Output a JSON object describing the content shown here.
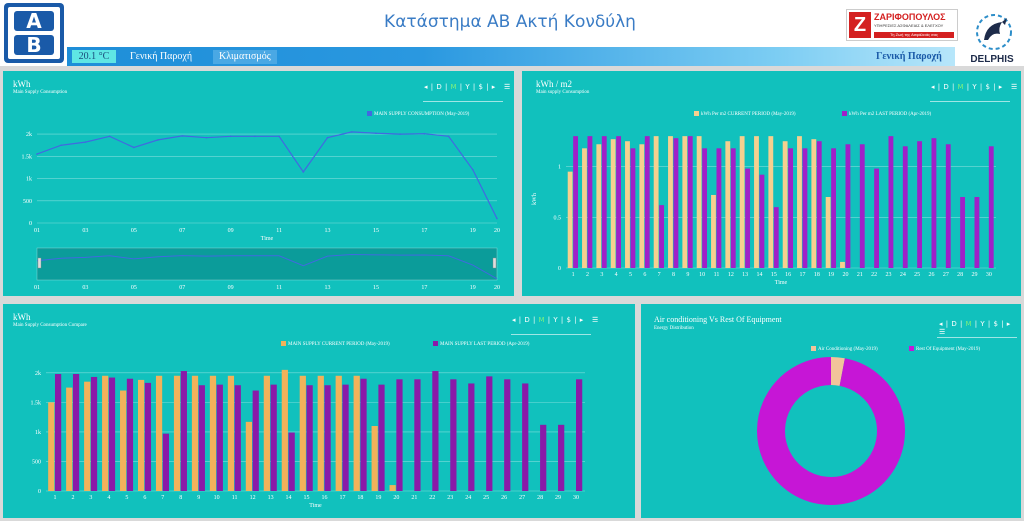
{
  "header": {
    "title": "Κατάστημα AB Ακτή Κονδύλη",
    "logo_text": "AB",
    "temperature": "20.1 °C",
    "nav_items": [
      "Γενική Παροχή",
      "Κλιματισμός"
    ],
    "nav_right": "Γενική Παροχή",
    "partner_logo": {
      "name": "ΖΑΡΙΦΟΠΟΥΛΟΣ",
      "subtitle": "ΥΠΗΡΕΣΙΕΣ ΑΣΦΑΛΕΙΑΣ & ΕΛΕΓΧΟΥ",
      "tagline": "Τη Ζωή της Ασφάλειάς σας"
    },
    "delphis_logo": "DELPHIS"
  },
  "colors": {
    "panel": "#11c1bd",
    "line": "#4169e1",
    "current": "#f2b25a",
    "last": "#8a1aa8",
    "ac": "#f2c49a",
    "rest": "#c616d6",
    "current_light": "#f6d08f",
    "last_bright": "#a020c8"
  },
  "controls": [
    "◂",
    "D",
    "M",
    "Y",
    "$",
    "▸",
    "☰"
  ],
  "panels": {
    "p1": {
      "title": "kWh",
      "subtitle": "Main Supply Consumption"
    },
    "p2": {
      "title": "kWh / m2",
      "subtitle": "Main supply Consumption"
    },
    "p3": {
      "title": "kWh",
      "subtitle": "Main Supply Consumption Compare"
    },
    "p4": {
      "title": "Air conditioning Vs Rest Of Equipment",
      "subtitle": "Energy Distribution"
    }
  },
  "chart_data": [
    {
      "type": "line",
      "series": [
        {
          "name": "MAIN SUPPLY CONSUMPTION (May-2019)",
          "values": [
            1550,
            1750,
            1820,
            1950,
            1700,
            1870,
            1960,
            1920,
            1950,
            1950,
            1950,
            1150,
            1920,
            2050,
            2020,
            2000,
            2010,
            1950,
            1200,
            100
          ]
        }
      ],
      "x": [
        "01",
        "02",
        "03",
        "04",
        "05",
        "06",
        "07",
        "08",
        "09",
        "10",
        "11",
        "12",
        "13",
        "14",
        "15",
        "16",
        "17",
        "18",
        "19",
        "20"
      ],
      "x_tick_labels": [
        "01",
        "03",
        "05",
        "07",
        "09",
        "11",
        "13",
        "15",
        "17",
        "19",
        "20"
      ],
      "y_ticks": [
        "0",
        "500",
        "1k",
        "1.5k",
        "2k"
      ],
      "ylim": [
        0,
        2250
      ],
      "xlabel": "Time",
      "navigator_ticks": [
        "01",
        "03",
        "05",
        "07",
        "09",
        "11",
        "13",
        "15",
        "17",
        "19",
        "20"
      ]
    },
    {
      "type": "bar",
      "categories": [
        "1",
        "2",
        "3",
        "4",
        "5",
        "6",
        "7",
        "8",
        "9",
        "10",
        "11",
        "12",
        "13",
        "14",
        "15",
        "16",
        "17",
        "18",
        "19",
        "20",
        "21",
        "22",
        "23",
        "24",
        "25",
        "26",
        "27",
        "28",
        "29",
        "30"
      ],
      "series": [
        {
          "name": "kWh Per m2 CURRENT PERIOD (May-2019)",
          "values": [
            0.95,
            1.18,
            1.22,
            1.27,
            1.25,
            1.22,
            1.3,
            1.3,
            1.3,
            1.3,
            0.72,
            1.25,
            1.3,
            1.3,
            1.3,
            1.25,
            1.3,
            1.27,
            0.7,
            0.06,
            null,
            null,
            null,
            null,
            null,
            null,
            null,
            null,
            null,
            null
          ]
        },
        {
          "name": "kWh Per m2 LAST PERIOD (Apr-2019)",
          "values": [
            1.3,
            1.3,
            1.3,
            1.3,
            1.18,
            1.3,
            0.62,
            1.28,
            1.3,
            1.18,
            1.18,
            1.18,
            0.98,
            0.92,
            0.6,
            1.18,
            1.18,
            1.25,
            1.18,
            1.22,
            1.22,
            0.98,
            1.3,
            1.2,
            1.25,
            1.28,
            1.22,
            0.7,
            0.7,
            1.2
          ]
        }
      ],
      "y_ticks": [
        "0",
        "0.5",
        "1"
      ],
      "ylim": [
        0,
        1.4
      ],
      "xlabel": "Time",
      "ylabel": "kWh"
    },
    {
      "type": "bar",
      "categories": [
        "1",
        "2",
        "3",
        "4",
        "5",
        "6",
        "7",
        "8",
        "9",
        "10",
        "11",
        "12",
        "13",
        "14",
        "15",
        "16",
        "17",
        "18",
        "19",
        "20",
        "21",
        "22",
        "23",
        "24",
        "25",
        "26",
        "27",
        "28",
        "29",
        "30"
      ],
      "series": [
        {
          "name": "MAIN SUPPLY CURRENT PERIOD (May-2019)",
          "values": [
            1500,
            1750,
            1850,
            1950,
            1700,
            1880,
            1950,
            1950,
            1950,
            1950,
            1950,
            1170,
            1950,
            2050,
            1950,
            1950,
            1950,
            1950,
            1100,
            100,
            null,
            null,
            null,
            null,
            null,
            null,
            null,
            null,
            null,
            null
          ]
        },
        {
          "name": "MAIN SUPPLY LAST PERIOD (Apr-2019)",
          "values": [
            1980,
            1980,
            1930,
            1920,
            1900,
            1830,
            970,
            2030,
            1790,
            1800,
            1790,
            1700,
            1800,
            990,
            1790,
            1790,
            1800,
            1900,
            1800,
            1890,
            1890,
            2030,
            1890,
            1820,
            1940,
            1890,
            1820,
            1120,
            1120,
            1890
          ]
        }
      ],
      "y_ticks": [
        "0",
        "500",
        "1k",
        "1.5k",
        "2k"
      ],
      "ylim": [
        0,
        2200
      ],
      "xlabel": "Time"
    },
    {
      "type": "pie",
      "slices": [
        {
          "name": "Air Conditioning (May-2019)",
          "value": 3
        },
        {
          "name": "Rest Of Equipment (May-2019)",
          "value": 97
        }
      ]
    }
  ]
}
